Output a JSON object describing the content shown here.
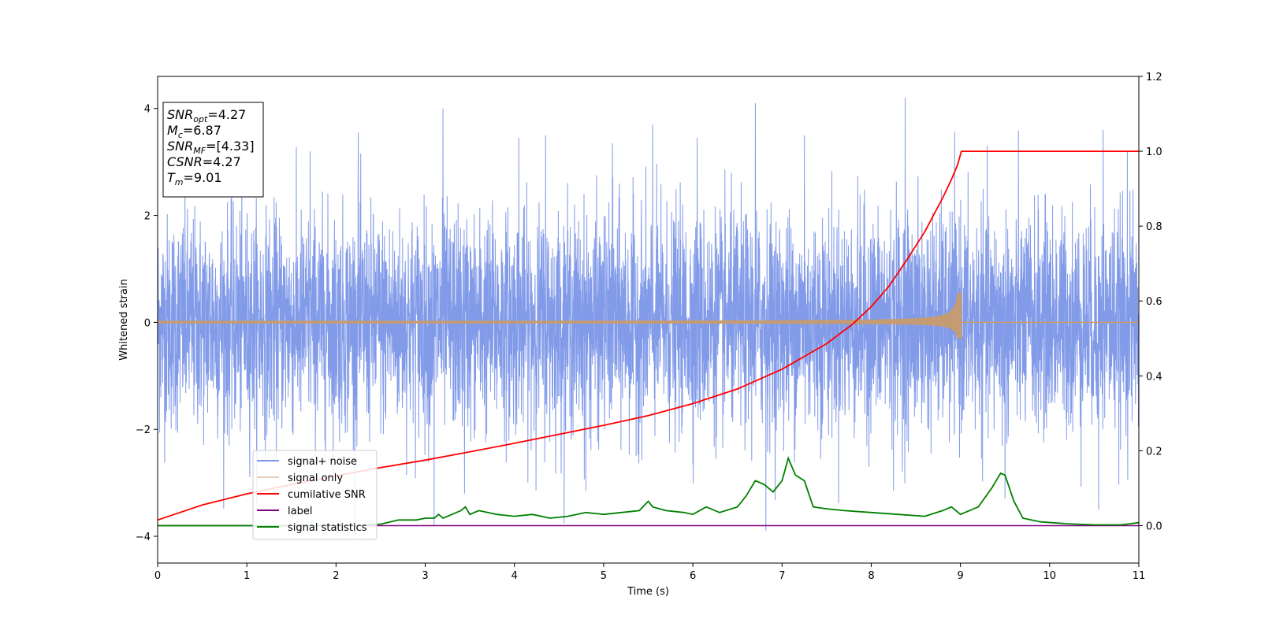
{
  "chart_data": {
    "type": "line",
    "xlabel": "Time (s)",
    "ylabel": "Whitened strain",
    "xlim": [
      0,
      11
    ],
    "ylim": [
      -4.5,
      4.6
    ],
    "y2lim": [
      -0.1,
      1.2
    ],
    "x_ticks": [
      "0",
      "1",
      "2",
      "3",
      "4",
      "5",
      "6",
      "7",
      "8",
      "9",
      "10",
      "11"
    ],
    "y_ticks": [
      "4",
      "2",
      "0",
      "−2",
      "−4"
    ],
    "y2_ticks": [
      "1.2",
      "1.0",
      "0.8",
      "0.6",
      "0.4",
      "0.2",
      "0.0"
    ],
    "grid": false,
    "legend_placement": "lower-left",
    "info_box": {
      "placement": "top-left",
      "lines": [
        {
          "main": "SNR",
          "sub": "opt",
          "rest": "=4.27"
        },
        {
          "main": "M",
          "sub": "c",
          "rest": "=6.87"
        },
        {
          "main": "SNR",
          "sub": "MF",
          "rest": "=[4.33]"
        },
        {
          "main": "CSNR",
          "sub": "",
          "rest": "=4.27"
        },
        {
          "main": "T",
          "sub": "m",
          "rest": "=9.01"
        }
      ]
    },
    "series": [
      {
        "name": "signal+ noise",
        "color": "#7b96e8",
        "axis": "left",
        "kind": "noise",
        "std": 1.0,
        "tall_spikes": [
          [
            1.71,
            3.2
          ],
          [
            2.25,
            3.55
          ],
          [
            3.2,
            4.0
          ],
          [
            4.05,
            3.45
          ],
          [
            4.35,
            3.5
          ],
          [
            5.1,
            3.35
          ],
          [
            5.55,
            3.7
          ],
          [
            6.05,
            3.45
          ],
          [
            6.7,
            4.1
          ],
          [
            7.25,
            3.5
          ],
          [
            8.38,
            4.2
          ],
          [
            9.5,
            3.55
          ],
          [
            10.6,
            3.6
          ],
          [
            10.87,
            3.2
          ]
        ],
        "low_spikes": [
          [
            3.1,
            -3.8
          ],
          [
            3.44,
            -3.2
          ],
          [
            4.8,
            -3.15
          ],
          [
            6.82,
            -3.9
          ],
          [
            8.25,
            -3.15
          ],
          [
            9.5,
            -3.3
          ],
          [
            10.55,
            -3.5
          ]
        ]
      },
      {
        "name": "signal only",
        "color": "#c89b6d",
        "axis": "left",
        "kind": "chirp",
        "merger_time": 9.01,
        "peak_amplitude": 0.55,
        "base_amplitude": 0.02
      },
      {
        "name": "cumilative SNR",
        "color": "#ff0000",
        "axis": "right",
        "x": [
          0,
          0.5,
          1,
          1.5,
          2,
          2.5,
          3,
          3.5,
          4,
          4.5,
          5,
          5.5,
          6,
          6.5,
          7,
          7.5,
          7.8,
          8,
          8.2,
          8.4,
          8.6,
          8.8,
          8.9,
          8.97,
          9.01,
          11
        ],
        "values": [
          0.015,
          0.055,
          0.085,
          0.11,
          0.133,
          0.155,
          0.175,
          0.197,
          0.22,
          0.244,
          0.268,
          0.294,
          0.326,
          0.365,
          0.418,
          0.486,
          0.54,
          0.585,
          0.64,
          0.71,
          0.785,
          0.875,
          0.925,
          0.965,
          1.0,
          1.0
        ]
      },
      {
        "name": "label",
        "color": "#800080",
        "axis": "right",
        "x": [
          0,
          11
        ],
        "values": [
          0.0,
          0.0
        ]
      },
      {
        "name": "signal statistics",
        "color": "#008000",
        "axis": "right",
        "x": [
          0,
          1,
          2,
          2.5,
          2.7,
          2.9,
          3.0,
          3.1,
          3.15,
          3.2,
          3.3,
          3.4,
          3.45,
          3.5,
          3.6,
          3.7,
          3.8,
          4.0,
          4.2,
          4.4,
          4.6,
          4.8,
          5.0,
          5.2,
          5.4,
          5.5,
          5.55,
          5.7,
          5.9,
          6.0,
          6.15,
          6.3,
          6.5,
          6.6,
          6.7,
          6.8,
          6.9,
          7.0,
          7.07,
          7.15,
          7.25,
          7.35,
          7.5,
          7.7,
          8.0,
          8.3,
          8.6,
          8.8,
          8.9,
          9.0,
          9.2,
          9.35,
          9.45,
          9.5,
          9.6,
          9.7,
          9.9,
          10.2,
          10.5,
          10.8,
          11
        ],
        "values": [
          0.0,
          0.0,
          0.0,
          0.004,
          0.015,
          0.015,
          0.02,
          0.02,
          0.03,
          0.02,
          0.03,
          0.04,
          0.05,
          0.03,
          0.04,
          0.035,
          0.03,
          0.025,
          0.03,
          0.02,
          0.025,
          0.035,
          0.03,
          0.035,
          0.04,
          0.065,
          0.05,
          0.04,
          0.035,
          0.03,
          0.05,
          0.035,
          0.05,
          0.08,
          0.12,
          0.11,
          0.09,
          0.12,
          0.18,
          0.135,
          0.12,
          0.05,
          0.045,
          0.04,
          0.035,
          0.03,
          0.025,
          0.04,
          0.05,
          0.03,
          0.05,
          0.1,
          0.14,
          0.135,
          0.065,
          0.02,
          0.01,
          0.005,
          0.002,
          0.002,
          0.008
        ]
      }
    ]
  }
}
